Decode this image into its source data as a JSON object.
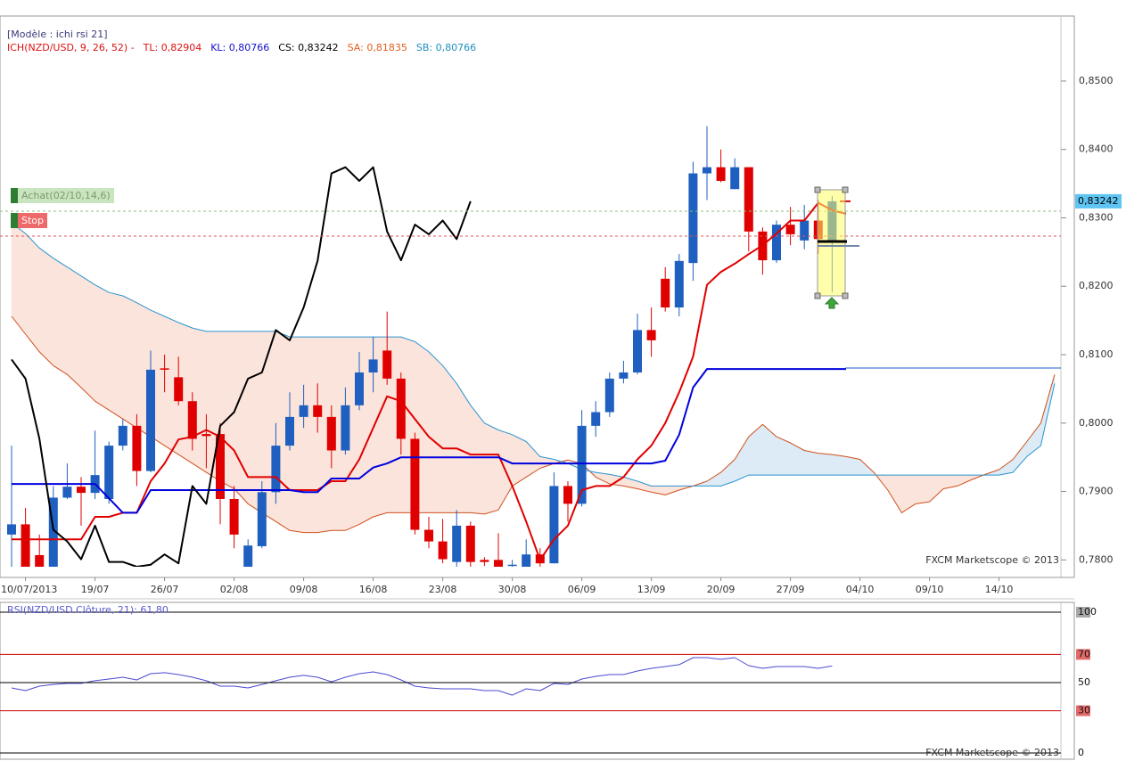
{
  "chart_data": [
    {
      "type": "candlestick",
      "model_label": "[Modèle : ichi rsi 21]",
      "indicator_label": "ICH(NZD/USD, 9, 26, 52) -",
      "indicator_color": "#dd1111",
      "readouts": [
        {
          "text": "TL: 0,82904",
          "color": "#dd1111"
        },
        {
          "text": "KL: 0,80766",
          "color": "#1111cc"
        },
        {
          "text": "CS: 0,83242",
          "color": "#000000"
        },
        {
          "text": "SA: 0,81835",
          "color": "#e0601e"
        },
        {
          "text": "SB: 0,80766",
          "color": "#2090c0"
        }
      ],
      "orders": [
        {
          "text": "Achat(02/10,14,6)",
          "color": "#c9e5c0"
        },
        {
          "text": "Stop",
          "color": "#ee6a6a"
        }
      ],
      "last_price_label": "0,83242",
      "watermark": "FXCM Marketscope © 2013",
      "categories": [
        null,
        "10/07/2013",
        null,
        null,
        null,
        null,
        "19/07",
        null,
        null,
        null,
        null,
        "26/07",
        null,
        null,
        null,
        null,
        "02/08",
        null,
        null,
        null,
        null,
        "09/08",
        null,
        null,
        null,
        null,
        "16/08",
        null,
        null,
        null,
        null,
        "23/08",
        null,
        null,
        null,
        null,
        "30/08",
        null,
        null,
        null,
        null,
        "06/09",
        null,
        null,
        null,
        null,
        "13/09",
        null,
        null,
        null,
        null,
        "20/09",
        null,
        null,
        null,
        null,
        "27/09",
        null,
        null,
        null,
        null,
        "04/10",
        null,
        null,
        null,
        null,
        "09/10",
        null,
        null,
        null,
        null,
        "14/10",
        null,
        null,
        null,
        null
      ],
      "open": [
        0.7837,
        0.7852,
        0.7807,
        0.779,
        0.7891,
        0.7907,
        0.7898,
        0.7889,
        0.7967,
        0.7996,
        0.793,
        0.808,
        0.8067,
        0.8032,
        0.7984,
        0.7984,
        0.7889,
        0.779,
        0.782,
        0.7899,
        0.7967,
        0.8009,
        0.8026,
        0.8009,
        0.796,
        0.8026,
        0.8074,
        0.8106,
        0.8065,
        0.7977,
        0.7844,
        0.7827,
        0.7797,
        0.785,
        0.78,
        0.78,
        0.7792,
        0.779,
        0.7808,
        0.7795,
        0.7908,
        0.7882,
        0.7996,
        0.8016,
        0.8065,
        0.8074,
        0.8136,
        0.8211,
        0.8169,
        0.8234,
        0.8365,
        0.8374,
        0.8342,
        0.8374,
        0.828,
        0.8238,
        0.829,
        0.8267,
        0.8296,
        0.8267,
        null,
        null,
        null,
        null,
        null,
        null,
        null,
        null,
        null,
        null,
        null,
        null,
        null,
        null,
        null,
        null
      ],
      "high": [
        0.7967,
        0.7876,
        0.7837,
        0.7908,
        0.7941,
        0.7921,
        0.7989,
        0.7973,
        0.8006,
        0.8013,
        0.8106,
        0.81,
        0.8097,
        0.8045,
        0.8013,
        0.8,
        0.7908,
        0.783,
        0.7915,
        0.8,
        0.8045,
        0.8056,
        0.8058,
        0.8026,
        0.8052,
        0.8104,
        0.8126,
        0.8163,
        0.8074,
        0.7986,
        0.7863,
        0.786,
        0.7873,
        0.7856,
        0.7804,
        0.7839,
        0.78,
        0.783,
        0.7817,
        0.7928,
        0.7915,
        0.8019,
        0.8032,
        0.8074,
        0.8091,
        0.816,
        0.8169,
        0.8228,
        0.8247,
        0.8382,
        0.8434,
        0.84,
        0.8387,
        0.8374,
        0.8286,
        0.8296,
        0.8316,
        0.8319,
        0.8326,
        0.8332,
        null,
        null,
        null,
        null,
        null,
        null,
        null,
        null,
        null,
        null,
        null,
        null,
        null,
        null,
        null,
        null
      ],
      "low": [
        0.779,
        0.7784,
        0.7784,
        0.7784,
        0.7889,
        0.785,
        0.7889,
        0.7882,
        0.796,
        0.7908,
        0.7928,
        0.8045,
        0.8026,
        0.796,
        0.7934,
        0.7852,
        0.7817,
        0.7784,
        0.7817,
        0.7882,
        0.796,
        0.7993,
        0.7986,
        0.7934,
        0.7954,
        0.8019,
        0.8045,
        0.8056,
        0.7954,
        0.7837,
        0.7817,
        0.7795,
        0.779,
        0.779,
        0.7791,
        0.7784,
        0.7785,
        0.7784,
        0.779,
        0.7795,
        0.7856,
        0.7878,
        0.798,
        0.8009,
        0.8058,
        0.8071,
        0.8097,
        0.8163,
        0.8156,
        0.8208,
        0.8326,
        0.8352,
        0.8342,
        0.8251,
        0.8217,
        0.8234,
        0.826,
        0.8254,
        0.8247,
        0.8191,
        null,
        null,
        null,
        null,
        null,
        null,
        null,
        null,
        null,
        null,
        null,
        null,
        null,
        null,
        null,
        null
      ],
      "close": [
        0.7852,
        0.779,
        0.779,
        0.7891,
        0.7907,
        0.7898,
        0.7924,
        0.7967,
        0.7996,
        0.793,
        0.8078,
        0.8078,
        0.8032,
        0.7977,
        0.7981,
        0.7889,
        0.7837,
        0.7821,
        0.7899,
        0.7967,
        0.8009,
        0.8026,
        0.8009,
        0.796,
        0.8026,
        0.8074,
        0.8093,
        0.8065,
        0.7977,
        0.7844,
        0.7827,
        0.7801,
        0.785,
        0.7797,
        0.7797,
        0.779,
        0.7793,
        0.7808,
        0.7795,
        0.7908,
        0.7882,
        0.7996,
        0.8016,
        0.8065,
        0.8074,
        0.8136,
        0.8121,
        0.8169,
        0.8237,
        0.8365,
        0.8374,
        0.8354,
        0.8374,
        0.828,
        0.8238,
        0.829,
        0.8276,
        0.8296,
        0.8269,
        0.83242,
        null,
        null,
        null,
        null,
        null,
        null,
        null,
        null,
        null,
        null,
        null,
        null,
        null,
        null,
        null,
        null
      ],
      "up_color": "#1f5fbf",
      "down_color": "#e00000",
      "cloud": {
        "span_a": {
          "color": "#d0501e",
          "values": [
            0.8156,
            0.813,
            0.8104,
            0.8084,
            0.8071,
            0.8052,
            0.8032,
            0.8019,
            0.8006,
            0.7993,
            0.798,
            0.7967,
            0.7954,
            0.7941,
            0.7928,
            0.7915,
            0.7904,
            0.7882,
            0.7869,
            0.7856,
            0.7843,
            0.784,
            0.784,
            0.7843,
            0.7843,
            0.7852,
            0.7863,
            0.7869,
            0.7869,
            0.7869,
            0.7869,
            0.7869,
            0.7869,
            0.7869,
            0.7867,
            0.7873,
            0.7908,
            0.7921,
            0.7934,
            0.7941,
            0.7946,
            0.7941,
            0.7921,
            0.7911,
            0.7908,
            0.7904,
            0.7899,
            0.7895,
            0.7902,
            0.7908,
            0.7915,
            0.7928,
            0.7947,
            0.798,
            0.7998,
            0.798,
            0.7971,
            0.796,
            0.7956,
            0.7954,
            0.7951,
            0.7947,
            0.7928,
            0.7902,
            0.7869,
            0.7882,
            0.7885,
            0.7904,
            0.7908,
            0.7917,
            0.7925,
            0.7932,
            0.7947,
            0.7973,
            0.8,
            0.8071
          ]
        },
        "span_b": {
          "color": "#2a95cf",
          "values": [
            0.8293,
            0.8277,
            0.8256,
            0.8241,
            0.8228,
            0.8215,
            0.8202,
            0.8191,
            0.8186,
            0.8176,
            0.8165,
            0.8156,
            0.8147,
            0.8139,
            0.8134,
            0.8134,
            0.8134,
            0.8134,
            0.8134,
            0.8134,
            0.8126,
            0.8126,
            0.8126,
            0.8126,
            0.8126,
            0.8126,
            0.8126,
            0.8126,
            0.8126,
            0.8119,
            0.8104,
            0.8084,
            0.8058,
            0.8026,
            0.8,
            0.799,
            0.7983,
            0.7973,
            0.7951,
            0.7947,
            0.7941,
            0.7932,
            0.7928,
            0.7925,
            0.7921,
            0.7915,
            0.7908,
            0.7908,
            0.7908,
            0.7908,
            0.7908,
            0.7908,
            0.7915,
            0.7924,
            0.7924,
            0.7924,
            0.7924,
            0.7924,
            0.7924,
            0.7924,
            0.7924,
            0.7924,
            0.7924,
            0.7924,
            0.7924,
            0.7924,
            0.7924,
            0.7924,
            0.7924,
            0.7924,
            0.7924,
            0.7924,
            0.7928,
            0.7951,
            0.7967,
            0.8058
          ]
        },
        "bull_fill": "#dcebf5",
        "bear_fill": "#fbe4dc"
      },
      "series": [
        {
          "color": "#e00000",
          "values": [
            0.783,
            0.783,
            0.783,
            0.783,
            0.783,
            0.783,
            0.7863,
            0.7863,
            0.7869,
            0.7869,
            0.7915,
            0.7941,
            0.7976,
            0.798,
            0.799,
            0.798,
            0.796,
            0.7921,
            0.7921,
            0.7921,
            0.7902,
            0.7902,
            0.7902,
            0.7915,
            0.7915,
            0.7947,
            0.7993,
            0.8039,
            0.8032,
            0.8006,
            0.798,
            0.7963,
            0.7963,
            0.7954,
            0.7954,
            0.7954,
            0.7908,
            0.7856,
            0.78,
            0.783,
            0.785,
            0.7902,
            0.7908,
            0.7908,
            0.7921,
            0.7947,
            0.7967,
            0.8,
            0.8045,
            0.8097,
            0.8202,
            0.8221,
            0.8233,
            0.8247,
            0.826,
            0.8277,
            0.8296,
            0.8296,
            0.8322,
            0.8311,
            0.8306,
            null,
            null,
            null,
            null,
            null,
            null,
            null,
            null,
            null,
            null,
            null,
            null,
            null,
            null,
            null
          ]
        },
        {
          "color": "#0000dd",
          "values": [
            0.7911,
            0.7911,
            0.7911,
            0.7911,
            0.7911,
            0.7911,
            0.7911,
            0.789,
            0.7869,
            0.7869,
            0.7902,
            0.7902,
            0.7902,
            0.7902,
            0.7902,
            0.7902,
            0.7902,
            0.7902,
            0.7902,
            0.7902,
            0.7902,
            0.7899,
            0.7899,
            0.7919,
            0.7919,
            0.7919,
            0.7935,
            0.7941,
            0.795,
            0.795,
            0.795,
            0.795,
            0.795,
            0.795,
            0.795,
            0.795,
            0.7941,
            0.7941,
            0.7941,
            0.7941,
            0.7941,
            0.7941,
            0.7941,
            0.7941,
            0.7941,
            0.7941,
            0.7941,
            0.7945,
            0.7983,
            0.8052,
            0.8079,
            0.8079,
            0.8079,
            0.8079,
            0.8079,
            0.8079,
            0.8079,
            0.8079,
            0.8079,
            0.8079,
            0.8079,
            null,
            null,
            null,
            null,
            null,
            null,
            null,
            null,
            null,
            null,
            null,
            null,
            null,
            null,
            null
          ]
        },
        {
          "color": "#000000",
          "values": [
            0.8093,
            0.8065,
            0.7977,
            0.7844,
            0.7827,
            0.7801,
            0.785,
            0.7797,
            0.7797,
            0.779,
            0.7793,
            0.7808,
            0.7795,
            0.7908,
            0.7882,
            0.7996,
            0.8016,
            0.8065,
            0.8074,
            0.8136,
            0.8121,
            0.8169,
            0.8237,
            0.8365,
            0.8374,
            0.8354,
            0.8374,
            0.828,
            0.8238,
            0.829,
            0.8276,
            0.8296,
            0.8269,
            0.83242,
            null,
            null,
            null,
            null,
            null,
            null,
            null,
            null,
            null,
            null,
            null,
            null,
            null,
            null,
            null,
            null,
            null,
            null,
            null,
            null,
            null,
            null,
            null,
            null,
            null,
            null,
            null,
            null,
            null,
            null,
            null,
            null,
            null,
            null,
            null,
            null,
            null,
            null,
            null,
            null,
            null,
            null
          ]
        }
      ],
      "ylim": [
        0.779,
        0.8595
      ],
      "yticks": [
        {
          "value": 0.78,
          "label": "0,7800"
        },
        {
          "value": 0.79,
          "label": "0,7900"
        },
        {
          "value": 0.8,
          "label": "0,8000"
        },
        {
          "value": 0.81,
          "label": "0,8100"
        },
        {
          "value": 0.82,
          "label": "0,8200"
        },
        {
          "value": 0.83,
          "label": "0,8300"
        },
        {
          "value": 0.84,
          "label": "0,8400"
        },
        {
          "value": 0.85,
          "label": "0,8500"
        }
      ],
      "grid": false
    },
    {
      "type": "line",
      "title": "RSI(NZD/USD.Clôture, 21): 61,80",
      "color": "#4a4ad0",
      "values": [
        46.2,
        44.3,
        47.5,
        48.7,
        49.4,
        49.4,
        51.3,
        52.5,
        53.8,
        51.9,
        56.3,
        57.0,
        55.7,
        53.8,
        51.3,
        47.5,
        47.5,
        46.2,
        48.7,
        51.3,
        53.8,
        55.1,
        53.8,
        50.6,
        53.8,
        56.3,
        57.6,
        55.7,
        51.9,
        47.5,
        46.2,
        45.6,
        45.6,
        45.6,
        44.3,
        44.3,
        41.1,
        45.6,
        44.3,
        49.4,
        48.7,
        52.5,
        54.4,
        55.7,
        55.7,
        58.2,
        60.1,
        61.4,
        62.7,
        67.7,
        67.7,
        66.5,
        67.7,
        62.0,
        60.1,
        61.4,
        61.4,
        61.4,
        60.1,
        61.8,
        null,
        null,
        null,
        null,
        null,
        null,
        null,
        null,
        null,
        null,
        null,
        null,
        null,
        null,
        null,
        null
      ],
      "ylim": [
        0,
        100
      ],
      "yticks": [
        100,
        70,
        50,
        30,
        0
      ],
      "level_colors": [
        "#000000",
        "#cc0000",
        "#000000",
        "#cc0000",
        "#000000"
      ],
      "label_fills": [
        "#a8a8a8",
        "#e46a6a",
        "#ffffff",
        "#e46a6a",
        "#ffffff"
      ],
      "watermark": "FXCM Marketscope © 2013"
    }
  ]
}
